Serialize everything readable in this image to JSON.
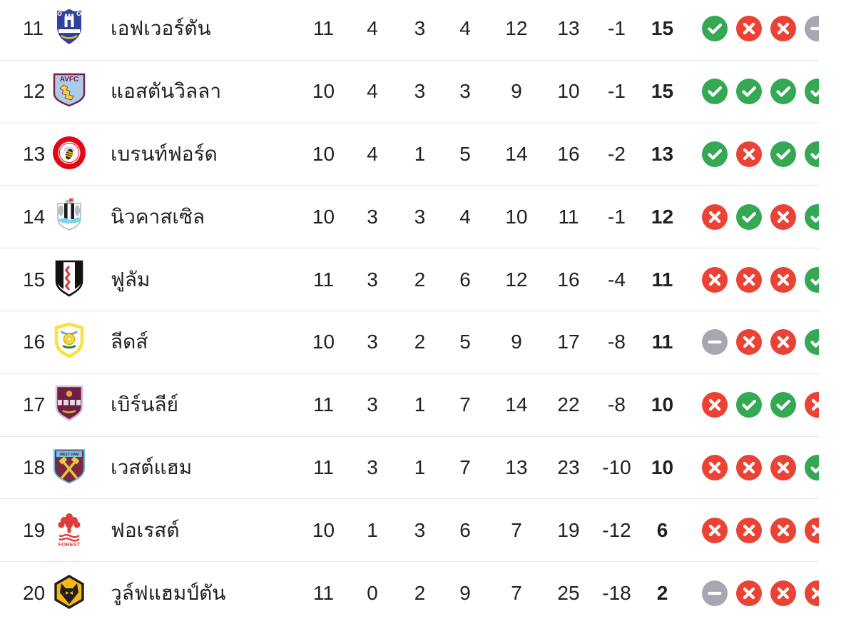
{
  "colors": {
    "win": "#34a853",
    "loss": "#ea4335",
    "draw": "#a6a7b0",
    "text": "#202124",
    "divider": "#e4e5e7"
  },
  "standings": {
    "rows": [
      {
        "pos": "11",
        "team": "เอฟเวอร์ตัน",
        "club": "everton",
        "played": "11",
        "won": "4",
        "drawn": "3",
        "lost": "4",
        "goals_for": "12",
        "goals_against": "13",
        "goal_diff": "-1",
        "points": "15",
        "form": [
          "win",
          "loss",
          "loss",
          "draw"
        ]
      },
      {
        "pos": "12",
        "team": "แอสตันวิลลา",
        "club": "aston-villa",
        "played": "10",
        "won": "4",
        "drawn": "3",
        "lost": "3",
        "goals_for": "9",
        "goals_against": "10",
        "goal_diff": "-1",
        "points": "15",
        "form": [
          "win",
          "win",
          "win",
          "win"
        ]
      },
      {
        "pos": "13",
        "team": "เบรนท์ฟอร์ด",
        "club": "brentford",
        "played": "10",
        "won": "4",
        "drawn": "1",
        "lost": "5",
        "goals_for": "14",
        "goals_against": "16",
        "goal_diff": "-2",
        "points": "13",
        "form": [
          "win",
          "loss",
          "win",
          "win"
        ]
      },
      {
        "pos": "14",
        "team": "นิวคาสเซิล",
        "club": "newcastle",
        "played": "10",
        "won": "3",
        "drawn": "3",
        "lost": "4",
        "goals_for": "10",
        "goals_against": "11",
        "goal_diff": "-1",
        "points": "12",
        "form": [
          "loss",
          "win",
          "loss",
          "win"
        ]
      },
      {
        "pos": "15",
        "team": "ฟูลัม",
        "club": "fulham",
        "played": "11",
        "won": "3",
        "drawn": "2",
        "lost": "6",
        "goals_for": "12",
        "goals_against": "16",
        "goal_diff": "-4",
        "points": "11",
        "form": [
          "loss",
          "loss",
          "loss",
          "win"
        ]
      },
      {
        "pos": "16",
        "team": "ลีดส์",
        "club": "leeds",
        "played": "10",
        "won": "3",
        "drawn": "2",
        "lost": "5",
        "goals_for": "9",
        "goals_against": "17",
        "goal_diff": "-8",
        "points": "11",
        "form": [
          "draw",
          "loss",
          "loss",
          "win"
        ]
      },
      {
        "pos": "17",
        "team": "เบิร์นลีย์",
        "club": "burnley",
        "played": "11",
        "won": "3",
        "drawn": "1",
        "lost": "7",
        "goals_for": "14",
        "goals_against": "22",
        "goal_diff": "-8",
        "points": "10",
        "form": [
          "loss",
          "win",
          "win",
          "loss"
        ]
      },
      {
        "pos": "18",
        "team": "เวสต์แฮม",
        "club": "west-ham",
        "played": "11",
        "won": "3",
        "drawn": "1",
        "lost": "7",
        "goals_for": "13",
        "goals_against": "23",
        "goal_diff": "-10",
        "points": "10",
        "form": [
          "loss",
          "loss",
          "loss",
          "win"
        ]
      },
      {
        "pos": "19",
        "team": "ฟอเรสต์",
        "club": "forest",
        "played": "10",
        "won": "1",
        "drawn": "3",
        "lost": "6",
        "goals_for": "7",
        "goals_against": "19",
        "goal_diff": "-12",
        "points": "6",
        "form": [
          "loss",
          "loss",
          "loss",
          "loss"
        ]
      },
      {
        "pos": "20",
        "team": "วูล์ฟแฮมป์ตัน",
        "club": "wolves",
        "played": "11",
        "won": "0",
        "drawn": "2",
        "lost": "9",
        "goals_for": "7",
        "goals_against": "25",
        "goal_diff": "-18",
        "points": "2",
        "form": [
          "draw",
          "loss",
          "loss",
          "loss"
        ]
      }
    ]
  }
}
